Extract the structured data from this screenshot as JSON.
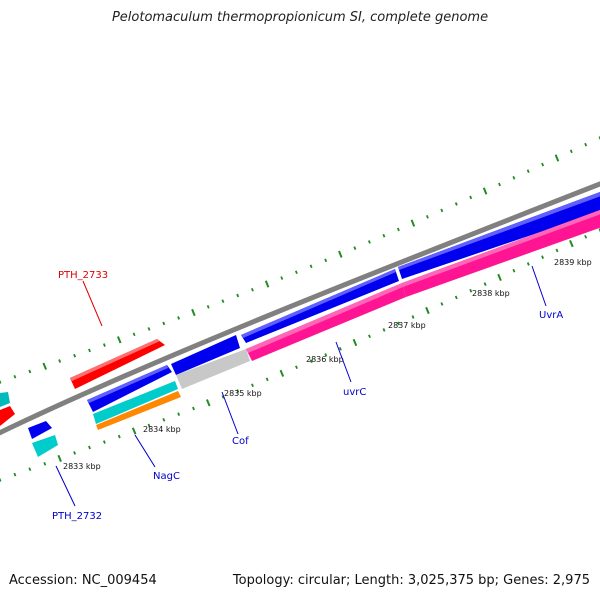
{
  "title": "Pelotomaculum thermopropionicum SI, complete genome",
  "footer": {
    "accession": "Accession: NC_009454",
    "topology": "Topology: circular; Length: 3,025,375 bp; Genes: 2,975"
  },
  "colors": {
    "backbone": "#808080",
    "tick_dots": "#228b22",
    "cds_forward": "#0000ee",
    "cds_reverse": "#ff1493",
    "rna": "#ff0000",
    "cyan": "#00cccc",
    "orange": "#ff8800",
    "gray": "#c8c8c8",
    "label_blue": "#0000cc",
    "label_red": "#dd0000"
  },
  "scale_ticks": [
    {
      "label": "2833 kbp"
    },
    {
      "label": "2834 kbp"
    },
    {
      "label": "2835 kbp"
    },
    {
      "label": "2836 kbp"
    },
    {
      "label": "2837 kbp"
    },
    {
      "label": "2838 kbp"
    },
    {
      "label": "2839 kbp"
    }
  ],
  "gene_labels": [
    {
      "name": "PTH_2733",
      "color": "red"
    },
    {
      "name": "PTH_2732",
      "color": "blue"
    },
    {
      "name": "NagC",
      "color": "blue"
    },
    {
      "name": "Cof",
      "color": "blue"
    },
    {
      "name": "uvrC",
      "color": "blue"
    },
    {
      "name": "UvrA",
      "color": "blue"
    }
  ]
}
